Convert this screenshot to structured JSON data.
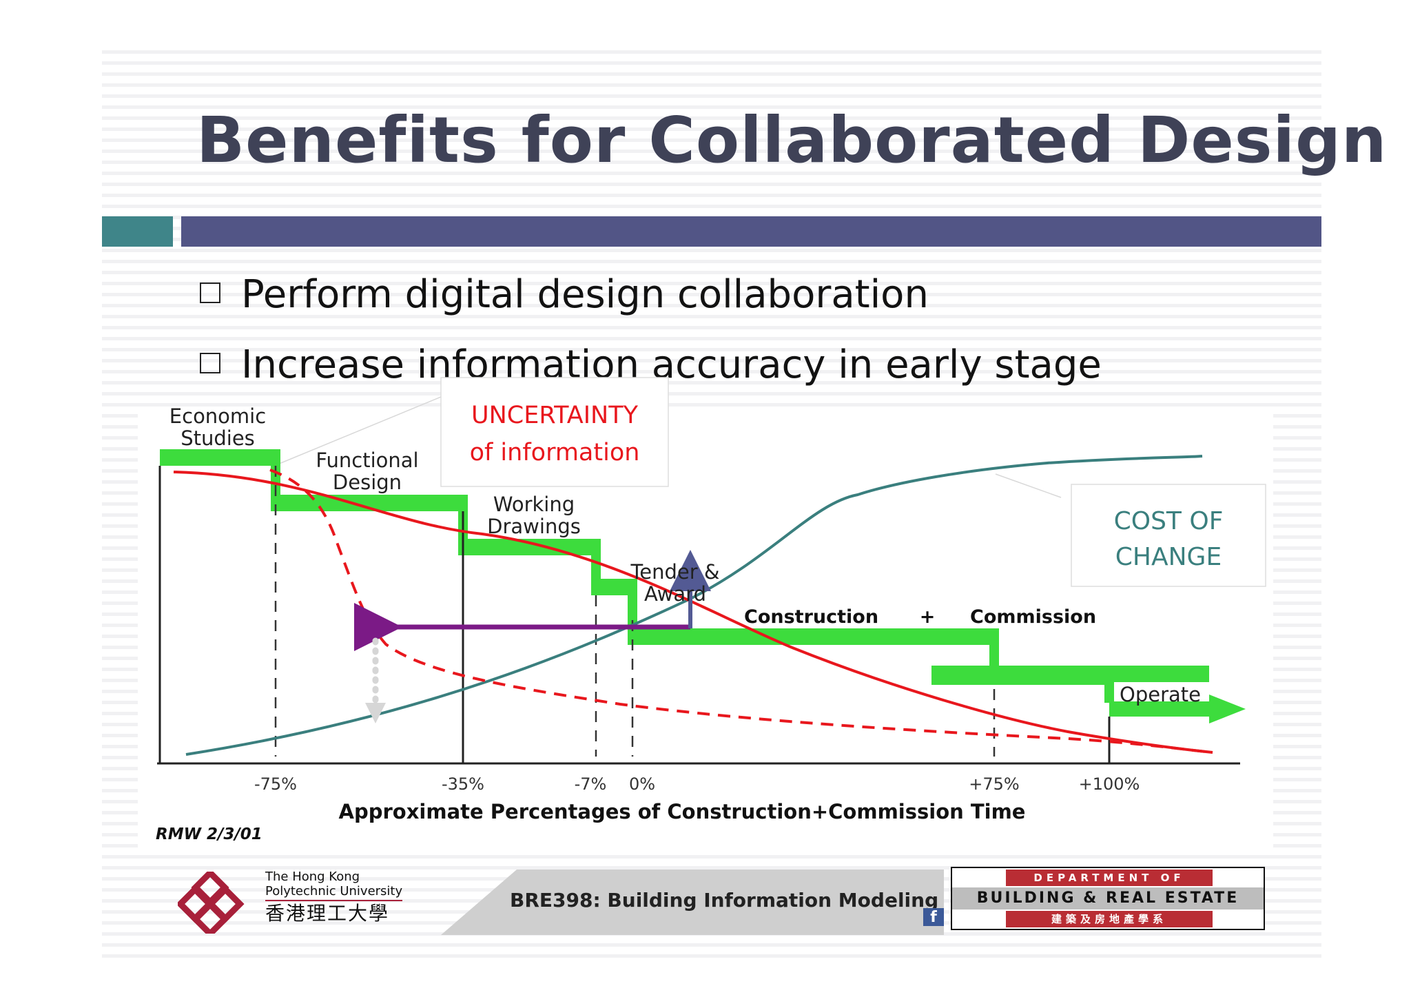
{
  "slide": {
    "title": "Benefits for Collaborated Design",
    "bullets": [
      "Perform digital design collaboration",
      "Increase information accuracy in early stage"
    ]
  },
  "chart_data": {
    "type": "line",
    "xlabel": "Approximate Percentages of Construction+Commission Time",
    "x_ticks": [
      "-75%",
      "-35%",
      "-7%",
      "0%",
      "+75%",
      "+100%"
    ],
    "phases": [
      {
        "label": "Economic Studies",
        "lines": [
          "Economic",
          "Studies"
        ],
        "start_pct": -100,
        "end_pct": -75
      },
      {
        "label": "Functional Design",
        "lines": [
          "Functional",
          "Design"
        ],
        "start_pct": -75,
        "end_pct": -35
      },
      {
        "label": "Working Drawings",
        "lines": [
          "Working",
          "Drawings"
        ],
        "start_pct": -35,
        "end_pct": -7
      },
      {
        "label": "Tender & Award",
        "lines": [
          "Tender &",
          "Award"
        ],
        "start_pct": -7,
        "end_pct": 0
      },
      {
        "label": "Construction + Commission",
        "lines": [
          "Construction",
          "+",
          "Commission"
        ],
        "start_pct": 0,
        "end_pct": 75
      },
      {
        "label": "Operate",
        "lines": [
          "Operate"
        ],
        "start_pct": 100,
        "end_pct": 120
      }
    ],
    "annotations": {
      "uncertainty": [
        "UNCERTAINTY",
        "of information"
      ],
      "cost_of_change": [
        "COST OF",
        "CHANGE"
      ],
      "credit": "RMW 2/3/01"
    },
    "colors": {
      "uncertainty": "#e8171d",
      "cost_of_change": "#3a7f7e",
      "phase_bar": "#3ddc3d",
      "shift_arrow": "#7b1a86",
      "up_arrow": "#535a94"
    }
  },
  "footer": {
    "university_lines": [
      "The Hong Kong",
      "Polytechnic University",
      "香港理工大學"
    ],
    "course": "BRE398: Building Information Modeling",
    "dept_top": "DEPARTMENT OF",
    "dept_mid": "BUILDING & REAL ESTATE",
    "dept_bottom": "建築及房地產學系",
    "facebook_icon": "facebook-icon"
  }
}
